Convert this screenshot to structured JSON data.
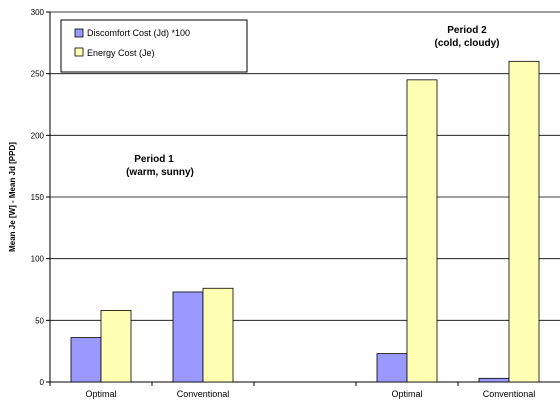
{
  "chart_data": {
    "type": "bar",
    "categories": [
      "Optimal",
      "Conventional",
      "",
      "Optimal",
      "Conventional"
    ],
    "series": [
      {
        "name": "Discomfort Cost (Jd) *100",
        "color": "#9999ff",
        "values": [
          36,
          73,
          null,
          23,
          3
        ]
      },
      {
        "name": "Energy Cost (Je)",
        "color": "#ffffb3",
        "values": [
          58,
          76,
          null,
          245,
          260
        ]
      }
    ],
    "ylabel": "Mean Je [W] - Mean Jd [PPD]",
    "xlabel": "",
    "ylim": [
      0,
      300
    ],
    "yticks": [
      0,
      50,
      100,
      150,
      200,
      250,
      300
    ],
    "grid": true,
    "legend_position": "top-left",
    "annotations": [
      {
        "lines": [
          "Period 1",
          "(warm, sunny)"
        ]
      },
      {
        "lines": [
          "Period 2",
          "(cold, cloudy)"
        ]
      }
    ]
  }
}
